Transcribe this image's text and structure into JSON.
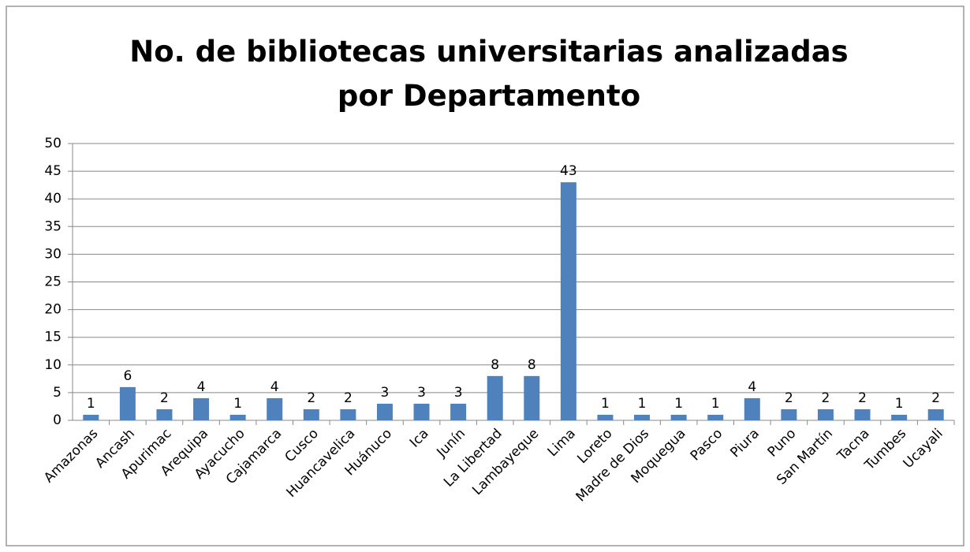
{
  "chart_data": {
    "type": "bar",
    "title": "No. de bibliotecas universitarias analizadas por Departamento",
    "categories": [
      "Amazonas",
      "Ancash",
      "Apurimac",
      "Arequipa",
      "Ayacucho",
      "Cajamarca",
      "Cusco",
      "Huancavelica",
      "Huánuco",
      "Ica",
      "Junín",
      "La Libertad",
      "Lambayeque",
      "Lima",
      "Loreto",
      "Madre de Dios",
      "Moquegua",
      "Pasco",
      "Piura",
      "Puno",
      "San Martín",
      "Tacna",
      "Tumbes",
      "Ucayali"
    ],
    "values": [
      1,
      6,
      2,
      4,
      1,
      4,
      2,
      2,
      3,
      3,
      3,
      8,
      8,
      43,
      1,
      1,
      1,
      1,
      4,
      2,
      2,
      2,
      1,
      2
    ],
    "color": "#4f81bd",
    "ylim": [
      0,
      50
    ],
    "yticks": [
      0,
      5,
      10,
      15,
      20,
      25,
      30,
      35,
      40,
      45,
      50
    ],
    "grid": true
  }
}
